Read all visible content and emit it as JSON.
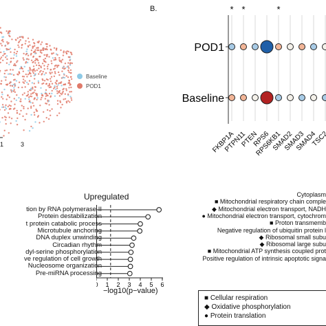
{
  "panel_b_label": "B.",
  "chart_data": [
    {
      "type": "scatter",
      "legend": [
        {
          "name": "Baseline",
          "color": "#8ecae6"
        },
        {
          "name": "POD1",
          "color": "#e07a6a"
        }
      ],
      "tick_labels": [
        "1",
        "3"
      ],
      "legend_placement": "right"
    },
    {
      "type": "dot-plot",
      "rows": [
        "POD1",
        "Baseline"
      ],
      "columns": [
        "FKBP1A",
        "PTPN11",
        "PTEN",
        "RPS6",
        "RPS6KB1",
        "SMAD2",
        "SMAD3",
        "SMAD4",
        "TSC2"
      ],
      "significant_marks": [
        "*",
        "*",
        "",
        "",
        "*",
        "",
        "",
        "",
        ""
      ],
      "colors": {
        "high": "#1f5fa8",
        "low": "#b22222",
        "light_blue": "#a8cbe6",
        "light_red": "#f2b597",
        "neutral": "#f4f1ea"
      }
    },
    {
      "type": "lollipop",
      "title": "Upregulated",
      "xlabel": "−log10(p−value)",
      "xlim": [
        0,
        6
      ],
      "x_ticks": [
        "0",
        "1",
        "2",
        "3",
        "4",
        "5",
        "6"
      ],
      "threshold": 1.3,
      "categories": [
        "tion by RNA polymerase II",
        "Protein destabilization",
        "t protein catabolic process",
        "Microtubule anchoring",
        "DNA duplex unwinding",
        "Circadian rhythm",
        "dyl-serine phosphorylation",
        "ve regulation of cell growth",
        "Nucleosome organization",
        "Pre-miRNA processing"
      ],
      "values": [
        5.7,
        4.7,
        4.0,
        3.95,
        3.4,
        3.25,
        3.15,
        3.1,
        3.1,
        3.05
      ]
    }
  ],
  "right_terms": [
    {
      "marker": "",
      "text": "Cytoplasm"
    },
    {
      "marker": "■",
      "text": "Mitochondrial respiratory chain comple"
    },
    {
      "marker": "◆",
      "text": "Mitochondrial electron transport, NADH"
    },
    {
      "marker": "●",
      "text": "Mitochondrial electron transport, cytochrom"
    },
    {
      "marker": "■",
      "text": "Proton transmemb"
    },
    {
      "marker": "",
      "text": "Negative regulation of ubiquitin protein l"
    },
    {
      "marker": "◆",
      "text": "Ribosomal small subu"
    },
    {
      "marker": "◆",
      "text": "Ribosomal large subu"
    },
    {
      "marker": "■",
      "text": "Mitochondrial ATP synthesis coupled prot"
    },
    {
      "marker": "",
      "text": "Positive regulation of intrinsic apoptotic signa"
    }
  ],
  "bottom_legend": [
    {
      "marker": "■",
      "text": "Cellular respiration"
    },
    {
      "marker": "◆",
      "text": "Oxidative phosphorylation"
    },
    {
      "marker": "●",
      "text": "Protein translation"
    }
  ]
}
